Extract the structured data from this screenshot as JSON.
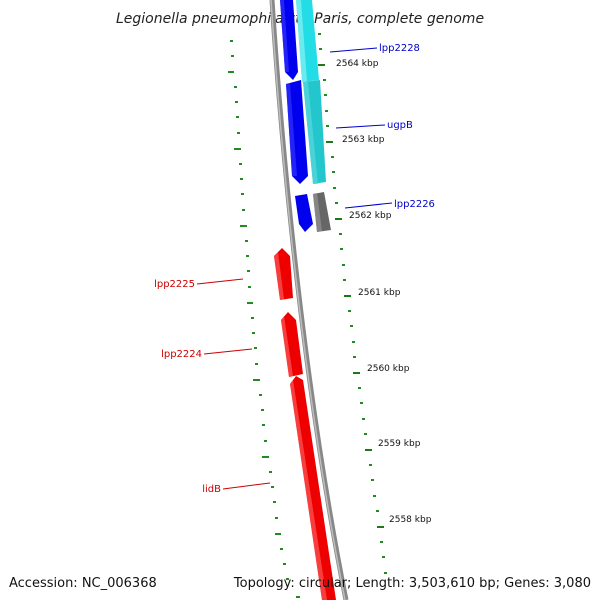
{
  "title": "Legionella pneumophila str. Paris, complete genome",
  "footer": {
    "accession": "Accession: NC_006368",
    "topology": "Topology: circular; Length: 3,503,610 bp; Genes: 3,080"
  },
  "ticks": {
    "t2564": "2564 kbp",
    "t2563": "2563 kbp",
    "t2562": "2562 kbp",
    "t2561": "2561 kbp",
    "t2560": "2560 kbp",
    "t2559": "2559 kbp",
    "t2558": "2558 kbp"
  },
  "genes": {
    "lpp2228": "lpp2228",
    "ugpB": "ugpB",
    "lpp2226": "lpp2226",
    "lpp2225": "lpp2225",
    "lpp2224": "lpp2224",
    "lidB": "lidB"
  },
  "colors": {
    "forward_strand": "#0000ee",
    "forward_alt": "#22dde6",
    "forward_other": "#666666",
    "reverse_strand": "#ee0000",
    "backbone": "#888888",
    "gc_track": "#228B22",
    "forward_label": "#0000cc",
    "reverse_label": "#cc0000"
  }
}
